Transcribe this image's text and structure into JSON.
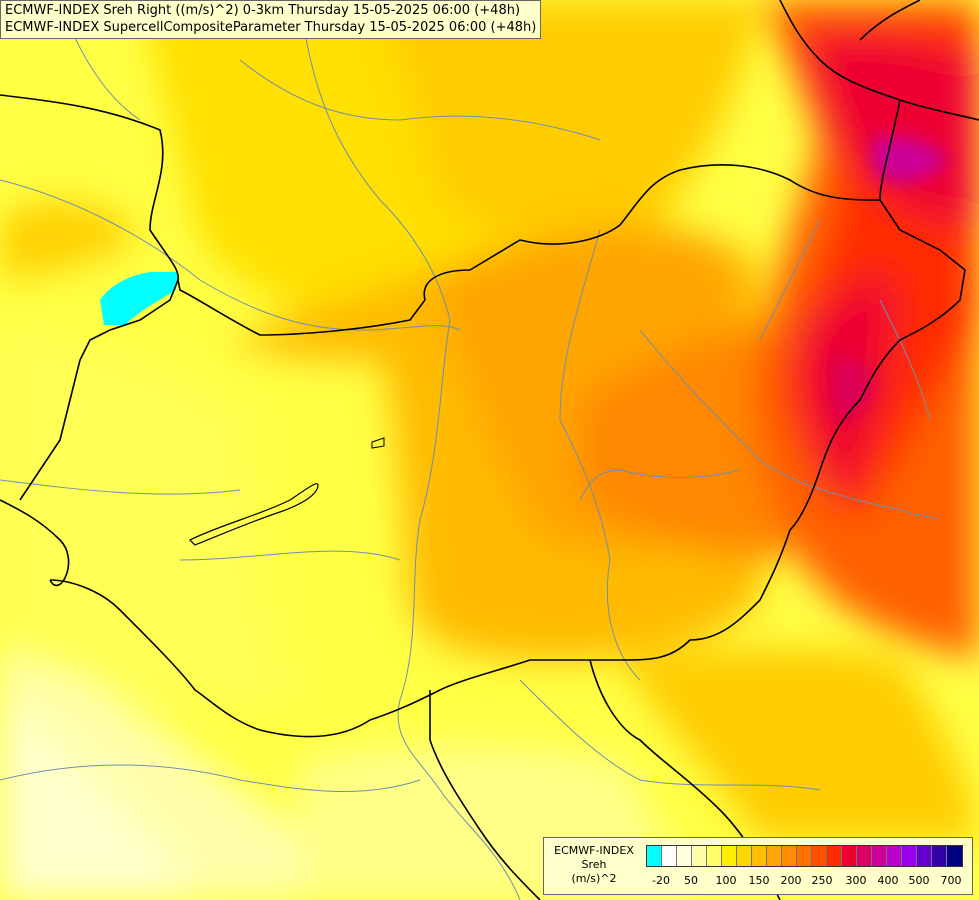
{
  "title": {
    "line1": "ECMWF-INDEX Sreh Right ((m/s)^2) 0-3km Thursday 15-05-2025 06:00 (+48h)",
    "line2": "ECMWF-INDEX SupercellCompositeParameter Thursday 15-05-2025 06:00 (+48h)"
  },
  "legend": {
    "line1": "ECMWF-INDEX",
    "line2": "Sreh",
    "line3": "(m/s)^2",
    "colors": [
      "#00ffff",
      "#ffffff",
      "#ffffdd",
      "#ffffaa",
      "#ffff66",
      "#ffee00",
      "#ffd700",
      "#ffbf00",
      "#ffa500",
      "#ff8c00",
      "#ff7000",
      "#ff5000",
      "#ff2a00",
      "#ee0033",
      "#dd0066",
      "#cc0099",
      "#bb00cc",
      "#9900ee",
      "#6600cc",
      "#3300aa",
      "#000080"
    ],
    "ticks": [
      "-20",
      "50",
      "100",
      "150",
      "200",
      "250",
      "300",
      "400",
      "500",
      "700"
    ]
  }
}
